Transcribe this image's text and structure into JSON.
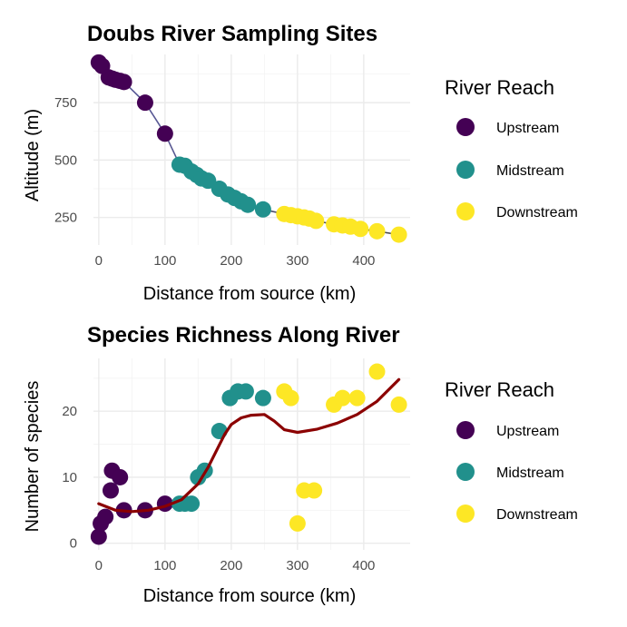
{
  "colors": {
    "Upstream": "#440154",
    "Midstream": "#21908C",
    "Downstream": "#FDE725",
    "altitude_line": "#5c5caa",
    "richness_smooth": "#8B0000"
  },
  "chart_data": [
    {
      "type": "scatter",
      "title": "Doubs River Sampling Sites",
      "xlabel": "Distance from source (km)",
      "ylabel": "Altitude (m)",
      "xlim": [
        -8,
        470
      ],
      "ylim": [
        130,
        960
      ],
      "xticks": [
        0,
        100,
        200,
        300,
        400
      ],
      "yticks": [
        250,
        500,
        750
      ],
      "grid": true,
      "legend": {
        "title": "River Reach",
        "placement": "right",
        "entries": [
          "Upstream",
          "Midstream",
          "Downstream"
        ]
      },
      "connecting_line": true,
      "series": [
        {
          "name": "Upstream",
          "x": [
            0,
            5,
            15,
            20,
            25,
            32,
            38,
            70,
            100
          ],
          "y": [
            925,
            910,
            860,
            855,
            850,
            845,
            840,
            750,
            615
          ]
        },
        {
          "name": "Midstream",
          "x": [
            122,
            130,
            140,
            148,
            155,
            165,
            182,
            195,
            205,
            215,
            225,
            248
          ],
          "y": [
            480,
            475,
            450,
            435,
            420,
            410,
            375,
            350,
            335,
            320,
            305,
            285
          ]
        },
        {
          "name": "Downstream",
          "x": [
            280,
            290,
            300,
            310,
            318,
            328,
            355,
            368,
            380,
            395,
            420,
            453
          ],
          "y": [
            265,
            260,
            255,
            250,
            245,
            235,
            220,
            215,
            210,
            200,
            190,
            175
          ]
        }
      ]
    },
    {
      "type": "scatter",
      "title": "Species Richness Along River",
      "xlabel": "Distance from source (km)",
      "ylabel": "Number of species",
      "xlim": [
        -8,
        470
      ],
      "ylim": [
        -1,
        28
      ],
      "xticks": [
        0,
        100,
        200,
        300,
        400
      ],
      "yticks": [
        0,
        10,
        20
      ],
      "grid": true,
      "legend": {
        "title": "River Reach",
        "placement": "right",
        "entries": [
          "Upstream",
          "Midstream",
          "Downstream"
        ]
      },
      "smooth_line": {
        "x": [
          0,
          25,
          50,
          75,
          100,
          125,
          150,
          165,
          180,
          190,
          200,
          215,
          230,
          250,
          265,
          280,
          300,
          330,
          360,
          390,
          420,
          453
        ],
        "y": [
          6,
          5,
          4.8,
          5,
          5.6,
          6.6,
          9,
          11.5,
          14.5,
          16.5,
          18,
          19,
          19.4,
          19.5,
          18.5,
          17.2,
          16.8,
          17.3,
          18.2,
          19.5,
          21.5,
          24.8
        ]
      },
      "series": [
        {
          "name": "Upstream",
          "x": [
            0,
            3,
            10,
            18,
            20,
            32,
            38,
            70,
            100
          ],
          "y": [
            1,
            3,
            4,
            8,
            11,
            10,
            5,
            5,
            6
          ]
        },
        {
          "name": "Midstream",
          "x": [
            122,
            130,
            140,
            150,
            160,
            182,
            198,
            210,
            222,
            248
          ],
          "y": [
            6,
            6,
            6,
            10,
            11,
            17,
            22,
            23,
            23,
            22
          ]
        },
        {
          "name": "Downstream",
          "x": [
            280,
            290,
            300,
            310,
            325,
            355,
            368,
            390,
            420,
            453
          ],
          "y": [
            23,
            22,
            3,
            8,
            8,
            21,
            22,
            22,
            26,
            21
          ]
        }
      ]
    }
  ]
}
